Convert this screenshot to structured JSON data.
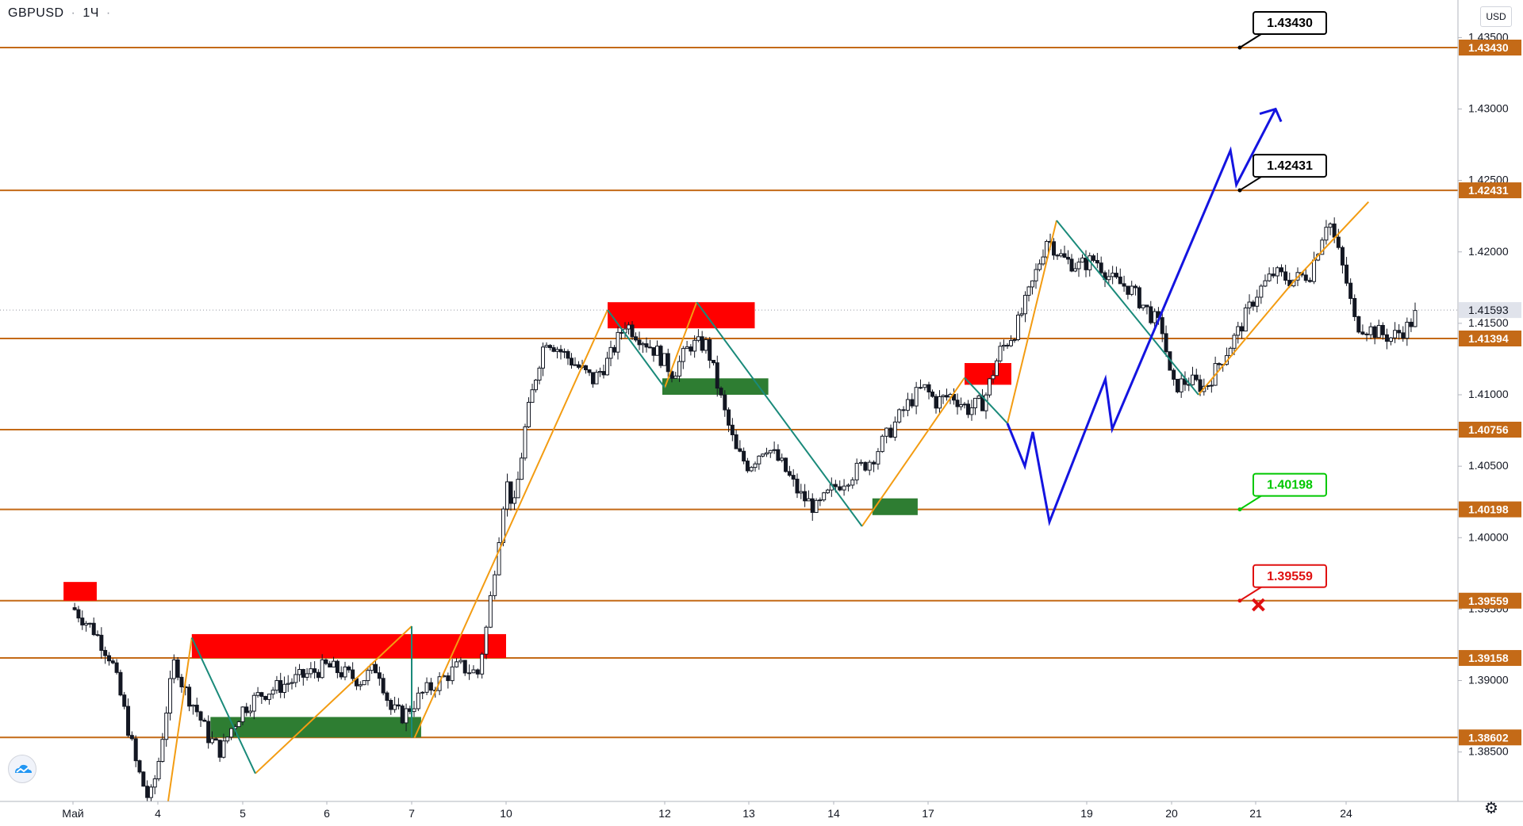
{
  "header": {
    "symbol": "GBPUSD",
    "interval": "1Ч",
    "separator": "·",
    "currency": "USD"
  },
  "icons": {
    "logo": "tradingview-cloud-icon",
    "settings": "gear-icon",
    "cross": "red-x-mark"
  },
  "colors": {
    "level_line": "#c46a17",
    "level_label_bg": "#c46a17",
    "bull_candle": "#131722",
    "supply_zone": "#ff0000",
    "demand_zone": "#2e7d32",
    "wave_orange": "#f39c12",
    "wave_teal": "#1a8a7a",
    "forecast_blue": "#1414e0",
    "current_price_bg": "#e0e3eb"
  },
  "chart_data": {
    "type": "candlestick",
    "instrument": "GBPUSD",
    "timeframe": "1Ч",
    "ylim": [
      1.3808,
      1.4375
    ],
    "y_ticks": [
      "1.43500",
      "1.43000",
      "1.42500",
      "1.42000",
      "1.41500",
      "1.41000",
      "1.40500",
      "1.40000",
      "1.39500",
      "1.39000",
      "1.38500"
    ],
    "x_ticks": [
      {
        "label": "Май",
        "day": 0
      },
      {
        "label": "4",
        "day": 1
      },
      {
        "label": "5",
        "day": 2
      },
      {
        "label": "6",
        "day": 3
      },
      {
        "label": "7",
        "day": 4
      },
      {
        "label": "10",
        "day": 5
      },
      {
        "label": "12",
        "day": 7
      },
      {
        "label": "13",
        "day": 8
      },
      {
        "label": "14",
        "day": 9
      },
      {
        "label": "17",
        "day": 10
      },
      {
        "label": "19",
        "day": 12
      },
      {
        "label": "20",
        "day": 13
      },
      {
        "label": "21",
        "day": 14
      },
      {
        "label": "24",
        "day": 15
      }
    ],
    "current_price": "1.41593",
    "levels": [
      "1.43430",
      "1.42431",
      "1.41394",
      "1.40756",
      "1.40198",
      "1.39559",
      "1.39158",
      "1.38602"
    ],
    "callouts": [
      {
        "label": "1.43430",
        "price": 1.4343,
        "style": "black"
      },
      {
        "label": "1.42431",
        "price": 1.42431,
        "style": "black"
      },
      {
        "label": "1.40198",
        "price": 1.40198,
        "style": "green"
      },
      {
        "label": "1.39559",
        "price": 1.39559,
        "style": "red"
      }
    ],
    "price_path": [
      [
        0.0,
        1.3951
      ],
      [
        0.25,
        1.3935
      ],
      [
        0.45,
        1.3915
      ],
      [
        0.6,
        1.388
      ],
      [
        0.75,
        1.384
      ],
      [
        0.9,
        1.3815
      ],
      [
        1.0,
        1.384
      ],
      [
        1.1,
        1.388
      ],
      [
        1.2,
        1.3915
      ],
      [
        1.3,
        1.3895
      ],
      [
        1.45,
        1.388
      ],
      [
        1.6,
        1.386
      ],
      [
        1.75,
        1.385
      ],
      [
        1.85,
        1.3865
      ],
      [
        2.0,
        1.388
      ],
      [
        2.2,
        1.389
      ],
      [
        2.4,
        1.3895
      ],
      [
        2.6,
        1.39
      ],
      [
        2.8,
        1.3905
      ],
      [
        3.0,
        1.391
      ],
      [
        3.2,
        1.3905
      ],
      [
        3.4,
        1.39
      ],
      [
        3.6,
        1.391
      ],
      [
        3.75,
        1.388
      ],
      [
        3.9,
        1.3875
      ],
      [
        4.1,
        1.389
      ],
      [
        4.3,
        1.39
      ],
      [
        4.5,
        1.391
      ],
      [
        4.7,
        1.3905
      ],
      [
        4.8,
        1.394
      ],
      [
        4.9,
        1.399
      ],
      [
        5.0,
        1.404
      ],
      [
        5.1,
        1.402
      ],
      [
        5.25,
        1.408
      ],
      [
        5.4,
        1.412
      ],
      [
        5.5,
        1.414
      ],
      [
        5.7,
        1.413
      ],
      [
        5.9,
        1.412
      ],
      [
        6.1,
        1.411
      ],
      [
        6.3,
        1.4125
      ],
      [
        6.5,
        1.415
      ],
      [
        6.7,
        1.414
      ],
      [
        6.9,
        1.413
      ],
      [
        7.1,
        1.4115
      ],
      [
        7.3,
        1.4135
      ],
      [
        7.5,
        1.4135
      ],
      [
        7.7,
        1.409
      ],
      [
        7.85,
        1.406
      ],
      [
        8.0,
        1.405
      ],
      [
        8.2,
        1.4065
      ],
      [
        8.4,
        1.405
      ],
      [
        8.6,
        1.403
      ],
      [
        8.8,
        1.402
      ],
      [
        9.0,
        1.4035
      ],
      [
        9.2,
        1.4045
      ],
      [
        9.4,
        1.4055
      ],
      [
        9.6,
        1.4075
      ],
      [
        9.8,
        1.4095
      ],
      [
        9.95,
        1.4105
      ],
      [
        10.1,
        1.4095
      ],
      [
        10.3,
        1.41
      ],
      [
        10.5,
        1.409
      ],
      [
        10.7,
        1.4095
      ],
      [
        10.9,
        1.413
      ],
      [
        11.1,
        1.4145
      ],
      [
        11.3,
        1.4175
      ],
      [
        11.5,
        1.421
      ],
      [
        11.7,
        1.4195
      ],
      [
        11.9,
        1.419
      ],
      [
        12.1,
        1.4195
      ],
      [
        12.3,
        1.418
      ],
      [
        12.5,
        1.4175
      ],
      [
        12.7,
        1.416
      ],
      [
        12.9,
        1.4145
      ],
      [
        13.0,
        1.4105
      ],
      [
        13.2,
        1.411
      ],
      [
        13.4,
        1.4105
      ],
      [
        13.6,
        1.4125
      ],
      [
        13.8,
        1.4145
      ],
      [
        14.0,
        1.417
      ],
      [
        14.2,
        1.4185
      ],
      [
        14.4,
        1.418
      ],
      [
        14.6,
        1.4185
      ],
      [
        14.8,
        1.4225
      ],
      [
        15.0,
        1.418
      ],
      [
        15.1,
        1.415
      ],
      [
        15.3,
        1.4145
      ],
      [
        15.5,
        1.414
      ],
      [
        15.7,
        1.4148
      ],
      [
        15.8,
        1.4159
      ]
    ],
    "zones": [
      {
        "kind": "supply",
        "from_day": -0.1,
        "to_day": 0.28,
        "low": 1.39559,
        "high": 1.3969
      },
      {
        "kind": "supply",
        "from_day": 1.4,
        "to_day": 5.0,
        "low": 1.39158,
        "high": 1.39325
      },
      {
        "kind": "demand",
        "from_day": 1.62,
        "to_day": 4.1,
        "low": 1.38602,
        "high": 1.38745
      },
      {
        "kind": "supply",
        "from_day": 6.28,
        "to_day": 8.07,
        "low": 1.41465,
        "high": 1.41648
      },
      {
        "kind": "demand",
        "from_day": 6.97,
        "to_day": 8.23,
        "low": 1.41,
        "high": 1.41115
      },
      {
        "kind": "supply",
        "from_day": 10.46,
        "to_day": 11.05,
        "low": 1.4107,
        "high": 1.41222
      },
      {
        "kind": "demand",
        "from_day": 9.41,
        "to_day": 9.89,
        "low": 1.40158,
        "high": 1.40275
      }
    ],
    "waves_orange": [
      [
        [
          1.12,
          1.3815
        ],
        [
          1.4,
          1.393
        ]
      ],
      [
        [
          2.15,
          1.3835
        ],
        [
          4.0,
          1.3938
        ]
      ],
      [
        [
          4.03,
          1.386
        ],
        [
          6.28,
          1.41594
        ]
      ],
      [
        [
          7.0,
          1.4105
        ],
        [
          7.38,
          1.41648
        ]
      ],
      [
        [
          9.3,
          1.4008
        ],
        [
          10.46,
          1.4112
        ]
      ],
      [
        [
          11.0,
          1.408
        ],
        [
          11.62,
          1.4222
        ]
      ],
      [
        [
          13.32,
          1.41
        ],
        [
          14.43,
          1.418
        ],
        [
          15.25,
          1.4235
        ]
      ]
    ],
    "waves_teal": [
      [
        [
          1.4,
          1.393
        ],
        [
          2.15,
          1.3835
        ]
      ],
      [
        [
          4.0,
          1.3938
        ],
        [
          4.0,
          1.386
        ]
      ],
      [
        [
          6.28,
          1.41594
        ],
        [
          7.0,
          1.4105
        ]
      ],
      [
        [
          7.38,
          1.41648
        ],
        [
          9.3,
          1.4008
        ]
      ],
      [
        [
          10.46,
          1.4112
        ],
        [
          11.0,
          1.408
        ]
      ],
      [
        [
          11.62,
          1.4222
        ],
        [
          13.32,
          1.41
        ]
      ]
    ],
    "forecast_blue": [
      [
        11.0,
        1.408
      ],
      [
        11.22,
        1.405
      ],
      [
        11.32,
        1.4074
      ],
      [
        11.53,
        1.4011
      ],
      [
        12.22,
        1.4111
      ],
      [
        12.3,
        1.4076
      ],
      [
        13.7,
        1.4271
      ],
      [
        13.77,
        1.4247
      ],
      [
        14.22,
        1.43
      ]
    ],
    "cross_mark": {
      "day": 14.03,
      "price": 1.3953
    }
  }
}
